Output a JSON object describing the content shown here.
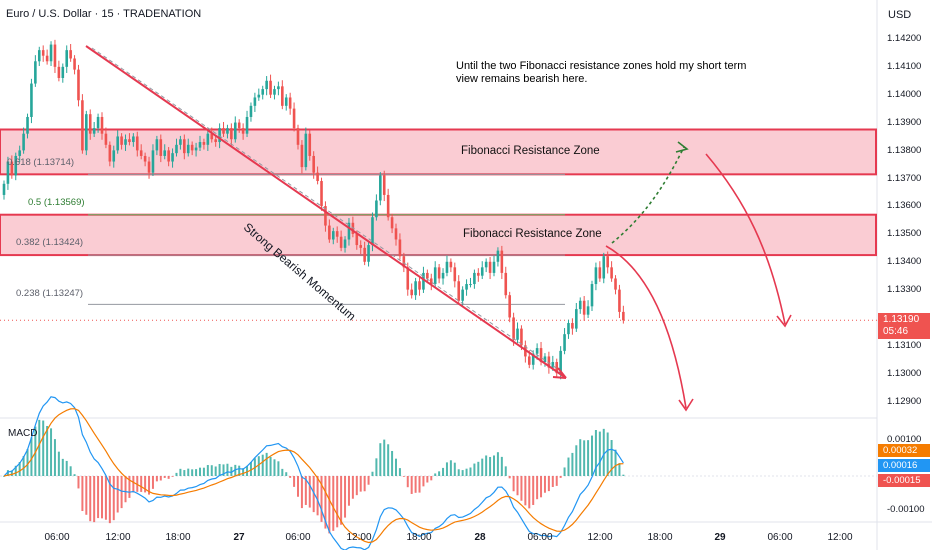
{
  "header": {
    "title": "Euro / U.S. Dollar · 15 · TRADENATION",
    "currency": "USD"
  },
  "annotation": {
    "note": "Until the two Fibonacci resistance zones hold my short term view remains bearish here.",
    "trend_label": "Strong Bearish Momentum"
  },
  "zones": [
    {
      "label": "Fibonacci Resistance Zone",
      "from": 1.13714,
      "to": 1.13875
    },
    {
      "label": "Fibonacci Resistance Zone",
      "from": 1.13424,
      "to": 1.13569
    }
  ],
  "fib_levels": [
    {
      "label": "0.618 (1.13714)",
      "value": 1.13714
    },
    {
      "label": "0.5 (1.13569)",
      "value": 1.13569
    },
    {
      "label": "0.382 (1.13424)",
      "value": 1.13424
    },
    {
      "label": "0.238 (1.13247)",
      "value": 1.13247
    }
  ],
  "price_axis": [
    "1.14200",
    "1.14100",
    "1.14000",
    "1.13900",
    "1.13800",
    "1.13700",
    "1.13600",
    "1.13500",
    "1.13400",
    "1.13300",
    "1.13100",
    "1.13000",
    "1.12900"
  ],
  "last_price": {
    "value": "1.13190",
    "countdown": "05:46"
  },
  "macd": {
    "label": "MACD",
    "axis": [
      "0.00100",
      "-0.00100"
    ],
    "badges": [
      {
        "text": "0.00032",
        "color": "#f57c00"
      },
      {
        "text": "0.00016",
        "color": "#2196f3"
      },
      {
        "text": "-0.00015",
        "color": "#ef5350"
      }
    ]
  },
  "time_axis": [
    {
      "label": "06:00",
      "bold": false
    },
    {
      "label": "12:00",
      "bold": false
    },
    {
      "label": "18:00",
      "bold": false
    },
    {
      "label": "27",
      "bold": true
    },
    {
      "label": "06:00",
      "bold": false
    },
    {
      "label": "12:00",
      "bold": false
    },
    {
      "label": "18:00",
      "bold": false
    },
    {
      "label": "28",
      "bold": true
    },
    {
      "label": "06:00",
      "bold": false
    },
    {
      "label": "12:00",
      "bold": false
    },
    {
      "label": "18:00",
      "bold": false
    },
    {
      "label": "29",
      "bold": true
    },
    {
      "label": "06:00",
      "bold": false
    },
    {
      "label": "12:00",
      "bold": false
    }
  ],
  "colors": {
    "up": "#26a69a",
    "down": "#ef5350",
    "zone_fill": "#f8bbc4",
    "zone_border": "#e53950",
    "macd_line": "#2196f3",
    "signal_line": "#f57c00"
  },
  "chart_data": {
    "type": "candlestick",
    "symbol": "EUR/USD",
    "interval": "15",
    "y_range": [
      1.1285,
      1.1427
    ],
    "series": [
      {
        "values": [
          1.1368,
          1.1376,
          1.1371,
          1.1378,
          1.138,
          1.1386,
          1.1392,
          1.1404,
          1.1412,
          1.1416,
          1.1414,
          1.1412,
          1.1418,
          1.141,
          1.1406,
          1.141,
          1.1416,
          1.1413,
          1.1409,
          1.1398,
          1.138,
          1.1393,
          1.1386,
          1.1388,
          1.1392,
          1.1386,
          1.1382,
          1.1376,
          1.138,
          1.1385,
          1.1382,
          1.1384,
          1.1383,
          1.1385,
          1.138,
          1.1378,
          1.1376,
          1.1372,
          1.138,
          1.1384,
          1.1378,
          1.138,
          1.1376,
          1.1379,
          1.1382,
          1.1384,
          1.1379,
          1.1382,
          1.138,
          1.1381,
          1.1383,
          1.1382,
          1.1386,
          1.1384,
          1.1383,
          1.1388,
          1.1386,
          1.1388,
          1.1384,
          1.139,
          1.1388,
          1.1386,
          1.1392,
          1.1396,
          1.1399,
          1.14,
          1.1402,
          1.1405,
          1.14,
          1.1402,
          1.1403,
          1.1396,
          1.1399,
          1.1395,
          1.1388,
          1.1382,
          1.1374,
          1.1386,
          1.1378,
          1.1372,
          1.1369,
          1.136,
          1.1353,
          1.1348,
          1.1351,
          1.1349,
          1.1345,
          1.1348,
          1.1354,
          1.135,
          1.1346,
          1.1345,
          1.134,
          1.1346,
          1.1356,
          1.1362,
          1.1371,
          1.1364,
          1.1356,
          1.1352,
          1.1348,
          1.1342,
          1.1338,
          1.133,
          1.1328,
          1.1333,
          1.133,
          1.1336,
          1.1334,
          1.1332,
          1.1338,
          1.1334,
          1.1336,
          1.134,
          1.1338,
          1.1333,
          1.1326,
          1.133,
          1.1332,
          1.1332,
          1.1336,
          1.1335,
          1.1338,
          1.134,
          1.1336,
          1.134,
          1.1344,
          1.1336,
          1.1328,
          1.132,
          1.1312,
          1.1316,
          1.131,
          1.1306,
          1.1303,
          1.1307,
          1.1309,
          1.1304,
          1.1306,
          1.1302,
          1.1304,
          1.13,
          1.1308,
          1.1314,
          1.1318,
          1.1316,
          1.1323,
          1.1326,
          1.1321,
          1.1324,
          1.1332,
          1.1338,
          1.1334,
          1.1342,
          1.1338,
          1.1334,
          1.133,
          1.1322,
          1.1319
        ]
      }
    ],
    "macd_range": [
      -0.0012,
      0.0013
    ]
  }
}
